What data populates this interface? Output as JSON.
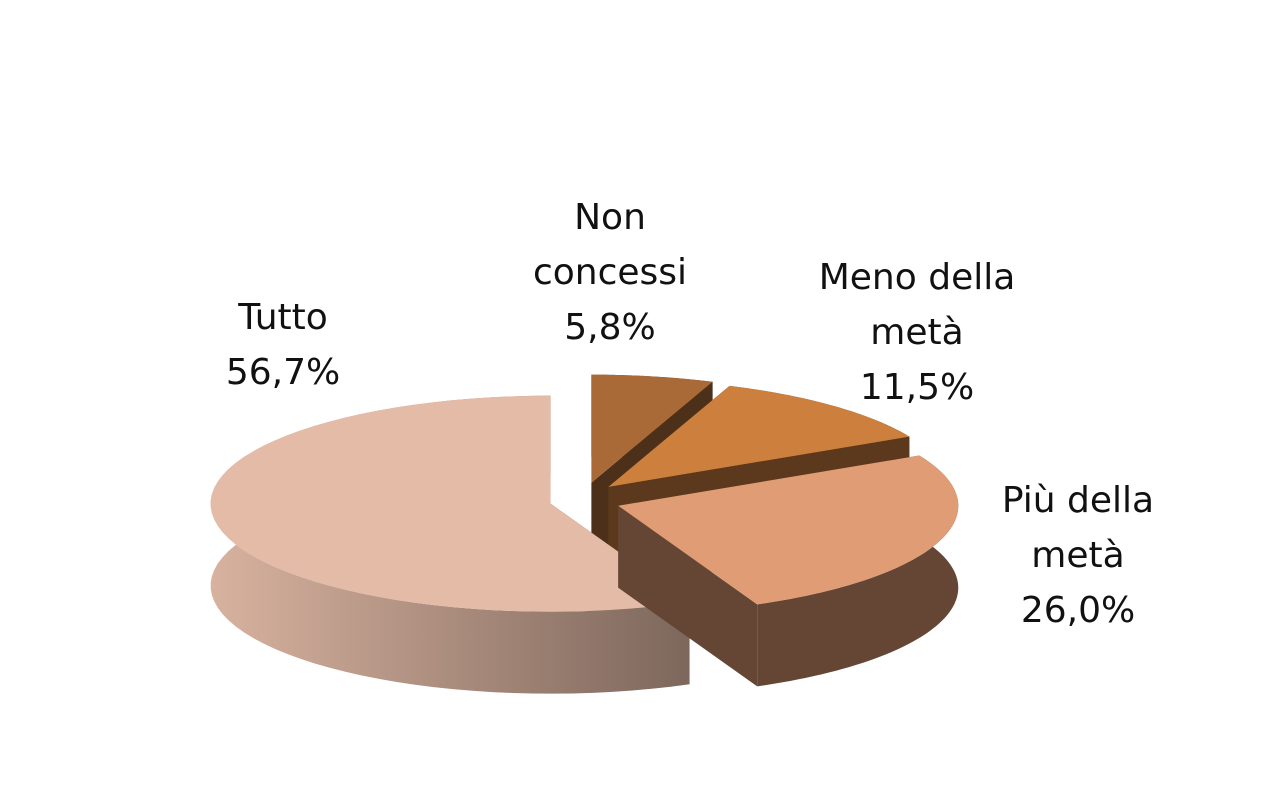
{
  "chart_data": {
    "type": "pie3d",
    "categories": [
      "Non concessi",
      "Meno della metà",
      "Più della metà",
      "Tutto"
    ],
    "values": [
      5.8,
      11.5,
      26.0,
      56.7
    ],
    "value_labels": [
      "5,8%",
      "11,5%",
      "26,0%",
      "56,7%"
    ],
    "colors": [
      "#a96a38",
      "#cd7f3e",
      "#e09c74",
      "#e3bba7"
    ]
  }
}
